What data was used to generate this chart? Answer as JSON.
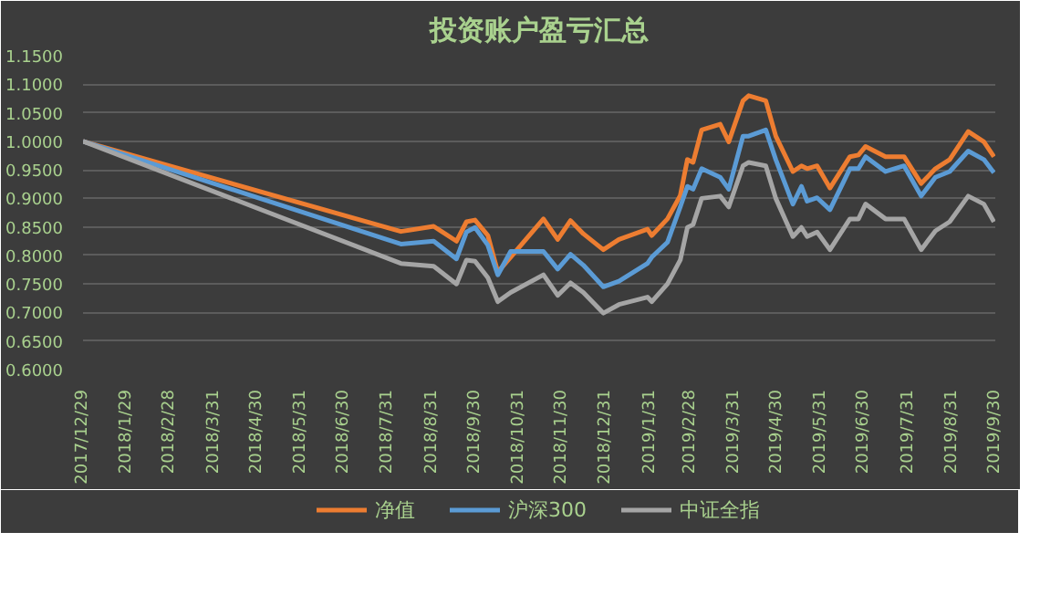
{
  "chart_data": {
    "type": "line",
    "title": "投资账户盈亏汇总",
    "x": [
      "2017-12-29",
      "2018-08-09",
      "2018-09-01",
      "2018-09-17",
      "2018-09-24",
      "2018-09-30",
      "2018-10-09",
      "2018-10-16",
      "2018-10-25",
      "2018-11-17",
      "2018-11-27",
      "2018-12-06",
      "2018-12-15",
      "2018-12-29",
      "2019-01-09",
      "2019-01-29",
      "2019-02-01",
      "2019-02-12",
      "2019-02-21",
      "2019-02-26",
      "2019-03-02",
      "2019-03-08",
      "2019-03-21",
      "2019-03-27",
      "2019-04-06",
      "2019-04-10",
      "2019-04-22",
      "2019-04-29",
      "2019-05-11",
      "2019-05-17",
      "2019-05-21",
      "2019-05-28",
      "2019-06-06",
      "2019-06-20",
      "2019-06-26",
      "2019-07-01",
      "2019-07-15",
      "2019-07-28",
      "2019-08-09",
      "2019-08-19",
      "2019-08-29",
      "2019-09-11",
      "2019-09-22",
      "2019-09-29"
    ],
    "series": [
      {
        "name": "净值",
        "color": "#ed7d31",
        "values": [
          1.0,
          0.842,
          0.851,
          0.825,
          0.859,
          0.862,
          0.835,
          0.771,
          0.797,
          0.864,
          0.828,
          0.861,
          0.838,
          0.81,
          0.828,
          0.846,
          0.835,
          0.864,
          0.905,
          0.968,
          0.963,
          1.02,
          1.03,
          0.999,
          1.071,
          1.08,
          1.071,
          1.009,
          0.947,
          0.957,
          0.952,
          0.957,
          0.918,
          0.973,
          0.976,
          0.991,
          0.973,
          0.973,
          0.926,
          0.952,
          0.968,
          1.017,
          0.999,
          0.973
        ]
      },
      {
        "name": "沪深300",
        "color": "#5b9bd5",
        "values": [
          1.0,
          0.82,
          0.825,
          0.794,
          0.841,
          0.849,
          0.818,
          0.766,
          0.807,
          0.807,
          0.776,
          0.802,
          0.783,
          0.745,
          0.755,
          0.786,
          0.797,
          0.823,
          0.885,
          0.921,
          0.916,
          0.952,
          0.937,
          0.916,
          1.009,
          1.009,
          1.02,
          0.968,
          0.89,
          0.921,
          0.895,
          0.901,
          0.88,
          0.952,
          0.952,
          0.973,
          0.947,
          0.957,
          0.904,
          0.937,
          0.947,
          0.983,
          0.968,
          0.945
        ]
      },
      {
        "name": "中证全指",
        "color": "#a5a5a5",
        "values": [
          1.0,
          0.786,
          0.781,
          0.75,
          0.792,
          0.79,
          0.761,
          0.719,
          0.735,
          0.766,
          0.73,
          0.752,
          0.735,
          0.699,
          0.714,
          0.727,
          0.719,
          0.75,
          0.792,
          0.849,
          0.854,
          0.9,
          0.904,
          0.885,
          0.957,
          0.963,
          0.957,
          0.9,
          0.833,
          0.849,
          0.833,
          0.841,
          0.81,
          0.864,
          0.864,
          0.89,
          0.864,
          0.864,
          0.81,
          0.843,
          0.859,
          0.904,
          0.89,
          0.859
        ]
      }
    ],
    "xlim": [
      "2017-12-29",
      "2019-09-30"
    ],
    "xticks": [
      {
        "value": "2017-12-29",
        "label": "2017/12/29"
      },
      {
        "value": "2018-01-29",
        "label": "2018/1/29"
      },
      {
        "value": "2018-02-28",
        "label": "2018/2/28"
      },
      {
        "value": "2018-03-31",
        "label": "2018/3/31"
      },
      {
        "value": "2018-04-30",
        "label": "2018/4/30"
      },
      {
        "value": "2018-05-31",
        "label": "2018/5/31"
      },
      {
        "value": "2018-06-30",
        "label": "2018/6/30"
      },
      {
        "value": "2018-07-31",
        "label": "2018/7/31"
      },
      {
        "value": "2018-08-31",
        "label": "2018/8/31"
      },
      {
        "value": "2018-09-30",
        "label": "2018/9/30"
      },
      {
        "value": "2018-10-31",
        "label": "2018/10/31"
      },
      {
        "value": "2018-11-30",
        "label": "2018/11/30"
      },
      {
        "value": "2018-12-31",
        "label": "2018/12/31"
      },
      {
        "value": "2019-01-31",
        "label": "2019/1/31"
      },
      {
        "value": "2019-02-28",
        "label": "2019/2/28"
      },
      {
        "value": "2019-03-31",
        "label": "2019/3/31"
      },
      {
        "value": "2019-04-30",
        "label": "2019/4/30"
      },
      {
        "value": "2019-05-31",
        "label": "2019/5/31"
      },
      {
        "value": "2019-06-30",
        "label": "2019/6/30"
      },
      {
        "value": "2019-07-31",
        "label": "2019/7/31"
      },
      {
        "value": "2019-08-31",
        "label": "2019/8/31"
      },
      {
        "value": "2019-09-30",
        "label": "2019/9/30"
      }
    ],
    "ylim": [
      0.6,
      1.15
    ],
    "yticks": [
      {
        "value": 0.6,
        "label": "0.6000"
      },
      {
        "value": 0.65,
        "label": "0.6500"
      },
      {
        "value": 0.7,
        "label": "0.7000"
      },
      {
        "value": 0.75,
        "label": "0.7500"
      },
      {
        "value": 0.8,
        "label": "0.8000"
      },
      {
        "value": 0.85,
        "label": "0.8500"
      },
      {
        "value": 0.9,
        "label": "0.9000"
      },
      {
        "value": 0.95,
        "label": "0.9500"
      },
      {
        "value": 1.0,
        "label": "1.0000"
      },
      {
        "value": 1.05,
        "label": "1.0500"
      },
      {
        "value": 1.1,
        "label": "1.1000"
      },
      {
        "value": 1.15,
        "label": "1.1500"
      }
    ],
    "grid": "y",
    "legend": "bottom",
    "marker": "none",
    "line_style": "solid"
  }
}
